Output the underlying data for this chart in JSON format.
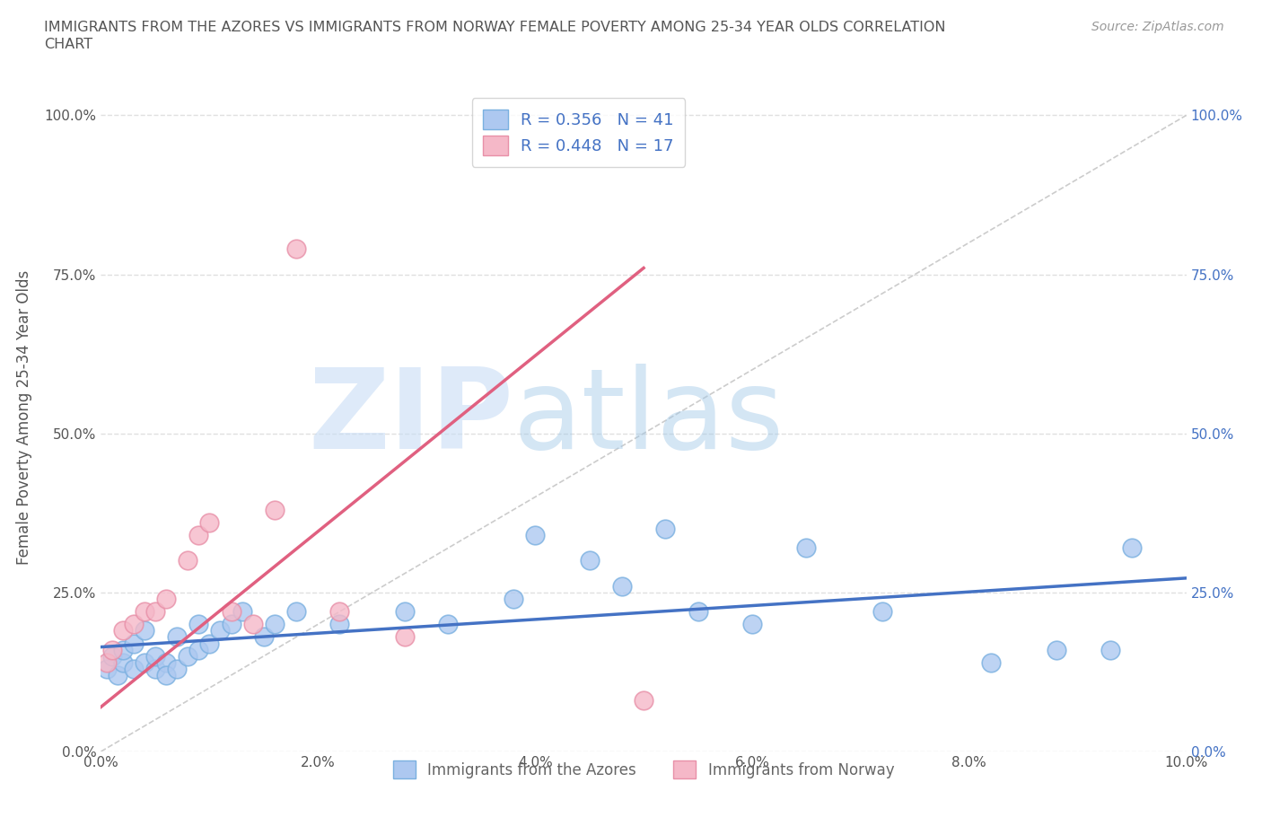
{
  "title_line1": "IMMIGRANTS FROM THE AZORES VS IMMIGRANTS FROM NORWAY FEMALE POVERTY AMONG 25-34 YEAR OLDS CORRELATION",
  "title_line2": "CHART",
  "source": "Source: ZipAtlas.com",
  "ylabel": "Female Poverty Among 25-34 Year Olds",
  "xlim": [
    0.0,
    0.1
  ],
  "ylim": [
    0.0,
    1.05
  ],
  "xticks": [
    0.0,
    0.02,
    0.04,
    0.06,
    0.08,
    0.1
  ],
  "yticks": [
    0.0,
    0.25,
    0.5,
    0.75,
    1.0
  ],
  "ytick_labels": [
    "0.0%",
    "25.0%",
    "50.0%",
    "75.0%",
    "100.0%"
  ],
  "xtick_labels": [
    "0.0%",
    "2.0%",
    "4.0%",
    "6.0%",
    "8.0%",
    "10.0%"
  ],
  "grid_color": "#e0e0e0",
  "azores_color": "#adc8f0",
  "azores_edge": "#7ab0e0",
  "norway_color": "#f5b8c8",
  "norway_edge": "#e890a8",
  "azores_R": 0.356,
  "azores_N": 41,
  "norway_R": 0.448,
  "norway_N": 17,
  "azores_line_color": "#4472c4",
  "norway_line_color": "#e06080",
  "diagonal_color": "#cccccc",
  "legend_text_color": "#4472c4",
  "right_tick_color": "#4472c4",
  "azores_x": [
    0.0005,
    0.001,
    0.0015,
    0.002,
    0.002,
    0.003,
    0.003,
    0.004,
    0.004,
    0.005,
    0.005,
    0.006,
    0.006,
    0.007,
    0.007,
    0.008,
    0.009,
    0.009,
    0.01,
    0.011,
    0.012,
    0.013,
    0.015,
    0.016,
    0.018,
    0.022,
    0.028,
    0.032,
    0.038,
    0.04,
    0.045,
    0.048,
    0.052,
    0.055,
    0.06,
    0.065,
    0.072,
    0.082,
    0.088,
    0.093,
    0.095
  ],
  "azores_y": [
    0.13,
    0.15,
    0.12,
    0.14,
    0.16,
    0.13,
    0.17,
    0.14,
    0.19,
    0.13,
    0.15,
    0.14,
    0.12,
    0.13,
    0.18,
    0.15,
    0.16,
    0.2,
    0.17,
    0.19,
    0.2,
    0.22,
    0.18,
    0.2,
    0.22,
    0.2,
    0.22,
    0.2,
    0.24,
    0.34,
    0.3,
    0.26,
    0.35,
    0.22,
    0.2,
    0.32,
    0.22,
    0.14,
    0.16,
    0.16,
    0.32
  ],
  "norway_x": [
    0.0005,
    0.001,
    0.002,
    0.003,
    0.004,
    0.005,
    0.006,
    0.008,
    0.009,
    0.01,
    0.012,
    0.014,
    0.016,
    0.018,
    0.022,
    0.028,
    0.05
  ],
  "norway_y": [
    0.14,
    0.16,
    0.19,
    0.2,
    0.22,
    0.22,
    0.24,
    0.3,
    0.34,
    0.36,
    0.22,
    0.2,
    0.38,
    0.79,
    0.22,
    0.18,
    0.08
  ],
  "norway_trend_x": [
    0.0,
    0.05
  ],
  "norway_trend_y": [
    0.07,
    0.76
  ]
}
